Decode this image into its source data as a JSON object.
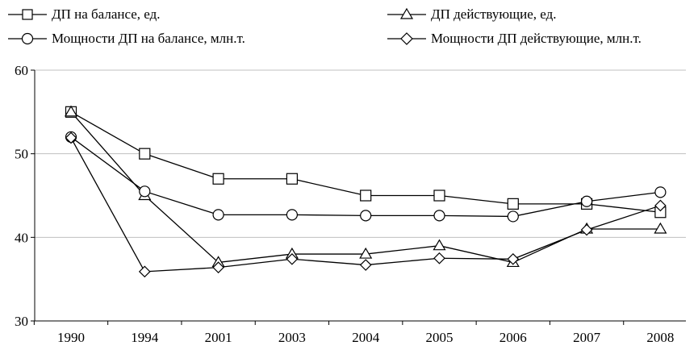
{
  "chart_data": {
    "type": "line",
    "categories": [
      "1990",
      "1994",
      "2001",
      "2003",
      "2004",
      "2005",
      "2006",
      "2007",
      "2008"
    ],
    "ylim": [
      30,
      60
    ],
    "yticks": [
      30,
      40,
      50,
      60
    ],
    "grid": {
      "horizontal": true,
      "vertical": false
    },
    "legend_position": "top",
    "series": [
      {
        "name": "ДП на балансе, ед.",
        "marker": "square",
        "values": [
          55,
          50,
          47,
          47,
          45,
          45,
          44,
          44,
          43
        ]
      },
      {
        "name": "ДП действующие, ед.",
        "marker": "triangle",
        "values": [
          55,
          45,
          37,
          38,
          38,
          39,
          37,
          41,
          41
        ]
      },
      {
        "name": "Мощности ДП на балансе, млн.т.",
        "marker": "circle",
        "values": [
          52,
          45.5,
          42.7,
          42.7,
          42.6,
          42.6,
          42.5,
          44.3,
          45.4
        ]
      },
      {
        "name": "Мощности ДП действующие, млн.т.",
        "marker": "diamond",
        "values": [
          51.9,
          35.9,
          36.4,
          37.4,
          36.7,
          37.5,
          37.4,
          40.9,
          43.8
        ]
      }
    ],
    "colors": {
      "line": "#000000",
      "grid": "#c0c0c0",
      "marker_fill": "#ffffff"
    }
  }
}
